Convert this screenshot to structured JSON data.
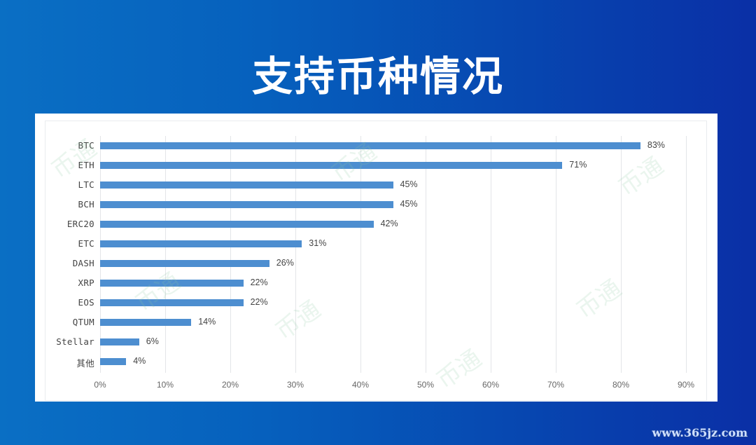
{
  "page": {
    "title": "支持币种情况",
    "site_watermark": "www.365jz.com",
    "watermark_text": "币通",
    "colors": {
      "background_left": "#0a6fc4",
      "background_right": "#0a2fa6",
      "bar": "#4d8ed0",
      "panel": "#ffffff",
      "title": "#ffffff"
    }
  },
  "chart_data": {
    "type": "bar",
    "orientation": "horizontal",
    "title": "支持币种情况",
    "xlabel": "",
    "ylabel": "",
    "xlim": [
      0,
      90
    ],
    "grid": true,
    "legend": null,
    "categories": [
      "BTC",
      "ETH",
      "LTC",
      "BCH",
      "ERC20",
      "ETC",
      "DASH",
      "XRP",
      "EOS",
      "QTUM",
      "Stellar",
      "其他"
    ],
    "values": [
      83,
      71,
      45,
      45,
      42,
      31,
      26,
      22,
      22,
      14,
      6,
      4
    ],
    "value_labels": [
      "83%",
      "71%",
      "45%",
      "45%",
      "42%",
      "31%",
      "26%",
      "22%",
      "22%",
      "14%",
      "6%",
      "4%"
    ],
    "x_ticks": [
      "0%",
      "10%",
      "20%",
      "30%",
      "40%",
      "50%",
      "60%",
      "70%",
      "80%",
      "90%"
    ]
  }
}
